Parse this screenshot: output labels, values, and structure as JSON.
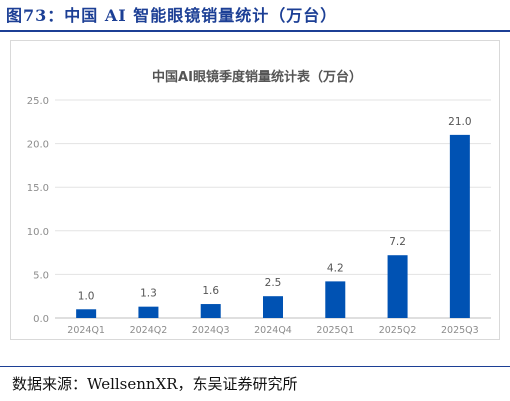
{
  "figure": {
    "title": "图73：中国 AI 智能眼镜销量统计（万台）",
    "source": "数据来源：WellsennXR，东吴证券研究所"
  },
  "colors": {
    "bar": "#0052b3",
    "title": "#1c3f95",
    "grid": "#e3e3e3",
    "axis_text": "#8c8c8c",
    "label_text": "#555555"
  },
  "chart_data": {
    "type": "bar",
    "title": "中国AI眼镜季度销量统计表（万台）",
    "xlabel": "",
    "ylabel": "",
    "categories": [
      "2024Q1",
      "2024Q2",
      "2024Q3",
      "2024Q4",
      "2025Q1",
      "2025Q2",
      "2025Q3"
    ],
    "values": [
      1.0,
      1.3,
      1.6,
      2.5,
      4.2,
      7.2,
      21.0
    ],
    "value_labels": [
      "1.0",
      "1.3",
      "1.6",
      "2.5",
      "4.2",
      "7.2",
      "21.0"
    ],
    "ylim": [
      0,
      25
    ],
    "yticks": [
      0,
      5,
      10,
      15,
      20,
      25
    ],
    "ytick_labels": [
      "0.0",
      "5.0",
      "10.0",
      "15.0",
      "20.0",
      "25.0"
    ],
    "grid": true,
    "legend": "none"
  }
}
